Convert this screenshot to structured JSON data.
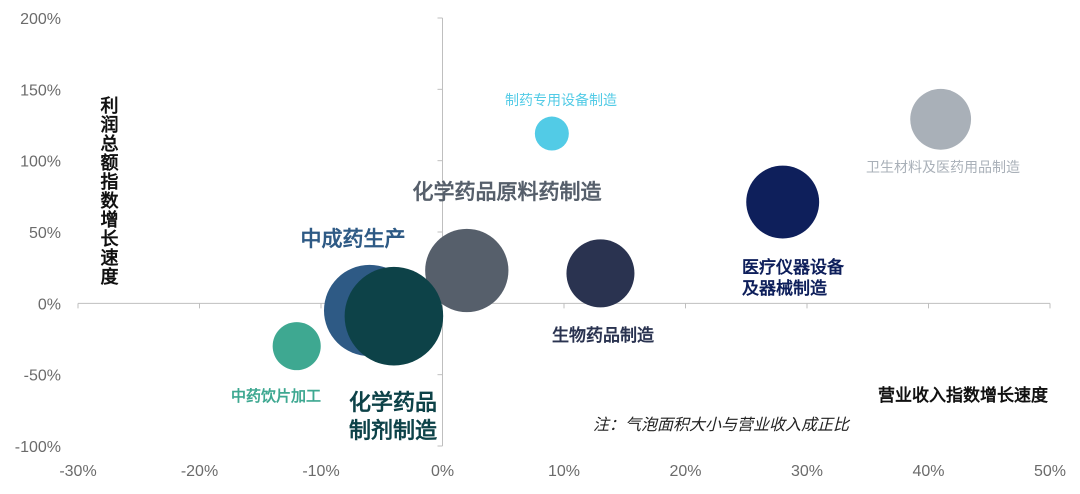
{
  "chart_data": {
    "type": "scatter",
    "subtype": "bubble",
    "xlabel": "营业收入指数增长速度",
    "ylabel": "利润总额指数增长速度",
    "note": "注：气泡面积大小与营业收入成正比",
    "xlim": [
      -30,
      50
    ],
    "ylim": [
      -100,
      200
    ],
    "xticks": [
      "-30%",
      "-20%",
      "-10%",
      "0%",
      "10%",
      "20%",
      "30%",
      "40%",
      "50%"
    ],
    "yticks": [
      "200%",
      "150%",
      "100%",
      "50%",
      "0%",
      "-50%",
      "-100%"
    ],
    "grid": false,
    "points": [
      {
        "name": "卫生材料及医药用品制造",
        "x": 41,
        "y": 129,
        "size": 0.8,
        "color": "#a9b0b8"
      },
      {
        "name": "制药专用设备制造",
        "x": 9,
        "y": 119,
        "size": 0.25,
        "color": "#52cbe6"
      },
      {
        "name": "医疗仪器设备及器械制造",
        "x": 28,
        "y": 71,
        "size": 1.15,
        "color": "#0e1f5b"
      },
      {
        "name": "化学药品原料药制造",
        "x": 2,
        "y": 23,
        "size": 1.5,
        "color": "#565f6b"
      },
      {
        "name": "生物药品制造",
        "x": 13,
        "y": 21,
        "size": 1.0,
        "color": "#2a3350"
      },
      {
        "name": "中成药生产",
        "x": -6,
        "y": -5,
        "size": 1.8,
        "color": "#2e5a85"
      },
      {
        "name": "化学药品制剂制造",
        "x": -4,
        "y": -9,
        "size": 2.1,
        "color": "#0d4248"
      },
      {
        "name": "中药饮片加工",
        "x": -12,
        "y": -30,
        "size": 0.5,
        "color": "#3ea891"
      }
    ]
  },
  "labels": {
    "health_materials": "卫生材料及医药用品制造",
    "pharma_equipment": "制药专用设备制造",
    "medical_line1": "医疗仪器设备",
    "medical_line2": "及器械制造",
    "chemical_raw": "化学药品原料药制造",
    "biological": "生物药品制造",
    "tcm": "中成药生产",
    "chemical_prep_line1": "化学药品",
    "chemical_prep_line2": "制剂制造",
    "tcm_pieces": "中药饮片加工"
  }
}
